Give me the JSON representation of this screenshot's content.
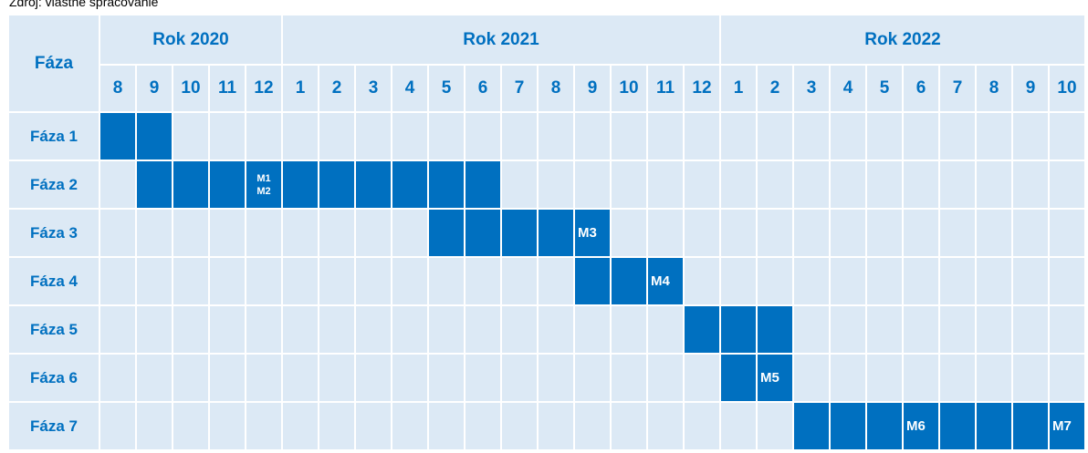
{
  "caption": "Zdroj: vlastné spracovanie",
  "header": {
    "phase": "Fáza",
    "years": [
      {
        "label": "Rok 2020",
        "months": [
          "8",
          "9",
          "10",
          "11",
          "12"
        ]
      },
      {
        "label": "Rok 2021",
        "months": [
          "1",
          "2",
          "3",
          "4",
          "5",
          "6",
          "7",
          "8",
          "9",
          "10",
          "11",
          "12"
        ]
      },
      {
        "label": "Rok 2022",
        "months": [
          "1",
          "2",
          "3",
          "4",
          "5",
          "6",
          "7",
          "8",
          "9",
          "10"
        ]
      }
    ]
  },
  "rows": [
    {
      "label": "Fáza 1",
      "cells": [
        true,
        true,
        null,
        null,
        null,
        null,
        null,
        null,
        null,
        null,
        null,
        null,
        null,
        null,
        null,
        null,
        null,
        null,
        null,
        null,
        null,
        null,
        null,
        null,
        null,
        null,
        null
      ]
    },
    {
      "label": "Fáza 2",
      "cells": [
        null,
        true,
        true,
        true,
        [
          "M1",
          "M2"
        ],
        true,
        true,
        true,
        true,
        true,
        true,
        null,
        null,
        null,
        null,
        null,
        null,
        null,
        null,
        null,
        null,
        null,
        null,
        null,
        null,
        null,
        null
      ]
    },
    {
      "label": "Fáza 3",
      "cells": [
        null,
        null,
        null,
        null,
        null,
        null,
        null,
        null,
        null,
        true,
        true,
        true,
        true,
        "M3",
        null,
        null,
        null,
        null,
        null,
        null,
        null,
        null,
        null,
        null,
        null,
        null,
        null
      ]
    },
    {
      "label": "Fáza 4",
      "cells": [
        null,
        null,
        null,
        null,
        null,
        null,
        null,
        null,
        null,
        null,
        null,
        null,
        null,
        true,
        true,
        "M4",
        null,
        null,
        null,
        null,
        null,
        null,
        null,
        null,
        null,
        null,
        null
      ]
    },
    {
      "label": "Fáza 5",
      "cells": [
        null,
        null,
        null,
        null,
        null,
        null,
        null,
        null,
        null,
        null,
        null,
        null,
        null,
        null,
        null,
        null,
        true,
        true,
        true,
        null,
        null,
        null,
        null,
        null,
        null,
        null,
        null
      ]
    },
    {
      "label": "Fáza 6",
      "cells": [
        null,
        null,
        null,
        null,
        null,
        null,
        null,
        null,
        null,
        null,
        null,
        null,
        null,
        null,
        null,
        null,
        null,
        true,
        "M5",
        null,
        null,
        null,
        null,
        null,
        null,
        null,
        null
      ]
    },
    {
      "label": "Fáza 7",
      "cells": [
        null,
        null,
        null,
        null,
        null,
        null,
        null,
        null,
        null,
        null,
        null,
        null,
        null,
        null,
        null,
        null,
        null,
        null,
        null,
        true,
        true,
        true,
        "M6",
        true,
        true,
        true,
        "M7"
      ]
    }
  ]
}
